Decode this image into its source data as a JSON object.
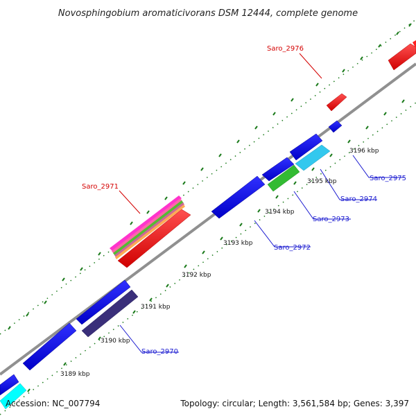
{
  "title": "Novosphingobium aromaticivorans DSM 12444, complete genome",
  "scale_labels": [
    "3189 kbp",
    "3190 kbp",
    "3191 kbp",
    "3192 kbp",
    "3193 kbp",
    "3194 kbp",
    "3195 kbp",
    "3196 kbp"
  ],
  "gene_labels": {
    "saro_2976": "Saro_2976",
    "saro_2971": "Saro_2971",
    "saro_2975": "Saro_2975",
    "saro_2974": "Saro_2974",
    "saro_2973": "Saro_2973",
    "saro_2972": "Saro_2972",
    "saro_2970": "Saro_2970"
  },
  "footer": {
    "accession": "Accession: NC_007794",
    "summary": "Topology: circular; Length: 3,561,584 bp; Genes: 3,397"
  },
  "colors": {
    "forward_gene": "#ff0000",
    "reverse_gene": "#0000e6",
    "backbone": "#8c8c8c",
    "tick": "#1a7a1a",
    "cyan_gene": "#33ccee",
    "green_gene": "#33bb33",
    "slate_gene": "#3a2f7a"
  }
}
